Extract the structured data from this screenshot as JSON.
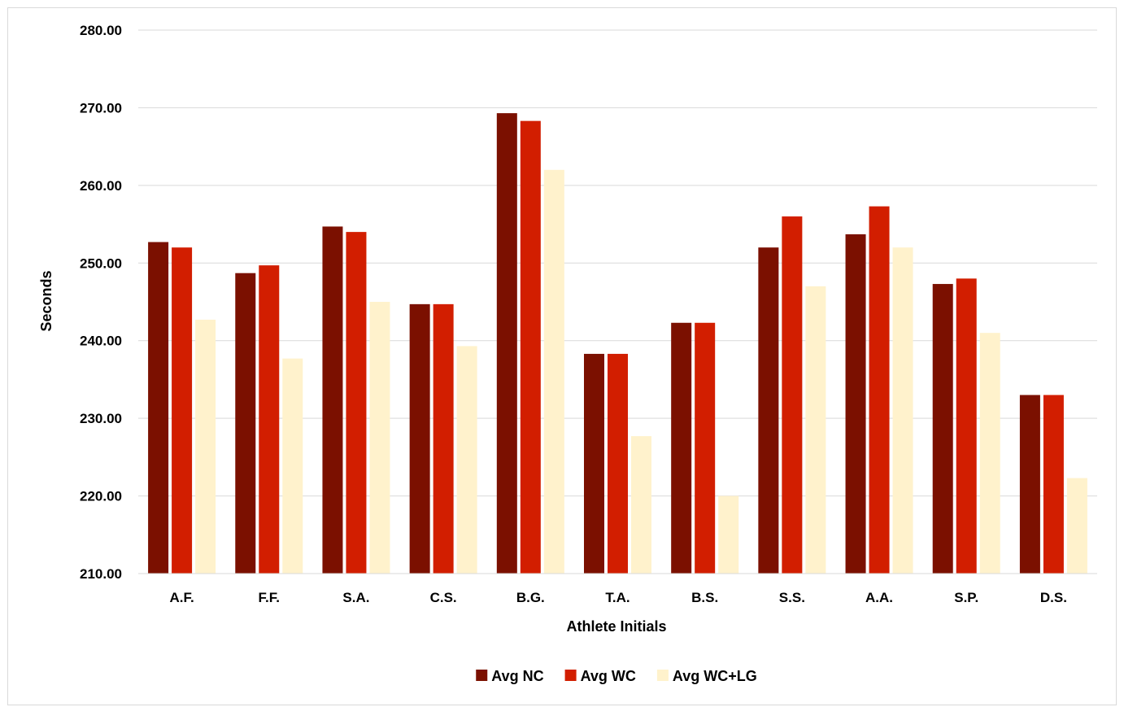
{
  "chart_data": {
    "type": "bar",
    "xlabel": "Athlete Initials",
    "ylabel": "Seconds",
    "ylim": [
      210,
      280
    ],
    "ytick_step": 10,
    "ytick_decimals": 2,
    "grid": true,
    "legend_position": "bottom",
    "categories": [
      "A.F.",
      "F.F.",
      "S.A.",
      "C.S.",
      "B.G.",
      "T.A.",
      "B.S.",
      "S.S.",
      "A.A.",
      "S.P.",
      "D.S."
    ],
    "series": [
      {
        "name": "Avg NC",
        "color": "#7b1000",
        "values": [
          252.7,
          248.7,
          254.7,
          244.7,
          269.3,
          238.3,
          242.3,
          252.0,
          253.7,
          247.3,
          233.0
        ]
      },
      {
        "name": "Avg WC",
        "color": "#d21e00",
        "values": [
          252.0,
          249.7,
          254.0,
          244.7,
          268.3,
          238.3,
          242.3,
          256.0,
          257.3,
          248.0,
          233.0
        ]
      },
      {
        "name": "Avg WC+LG",
        "color": "#fff2cc",
        "values": [
          242.7,
          237.7,
          245.0,
          239.3,
          262.0,
          227.7,
          220.0,
          247.0,
          252.0,
          241.0,
          222.3
        ]
      }
    ]
  }
}
